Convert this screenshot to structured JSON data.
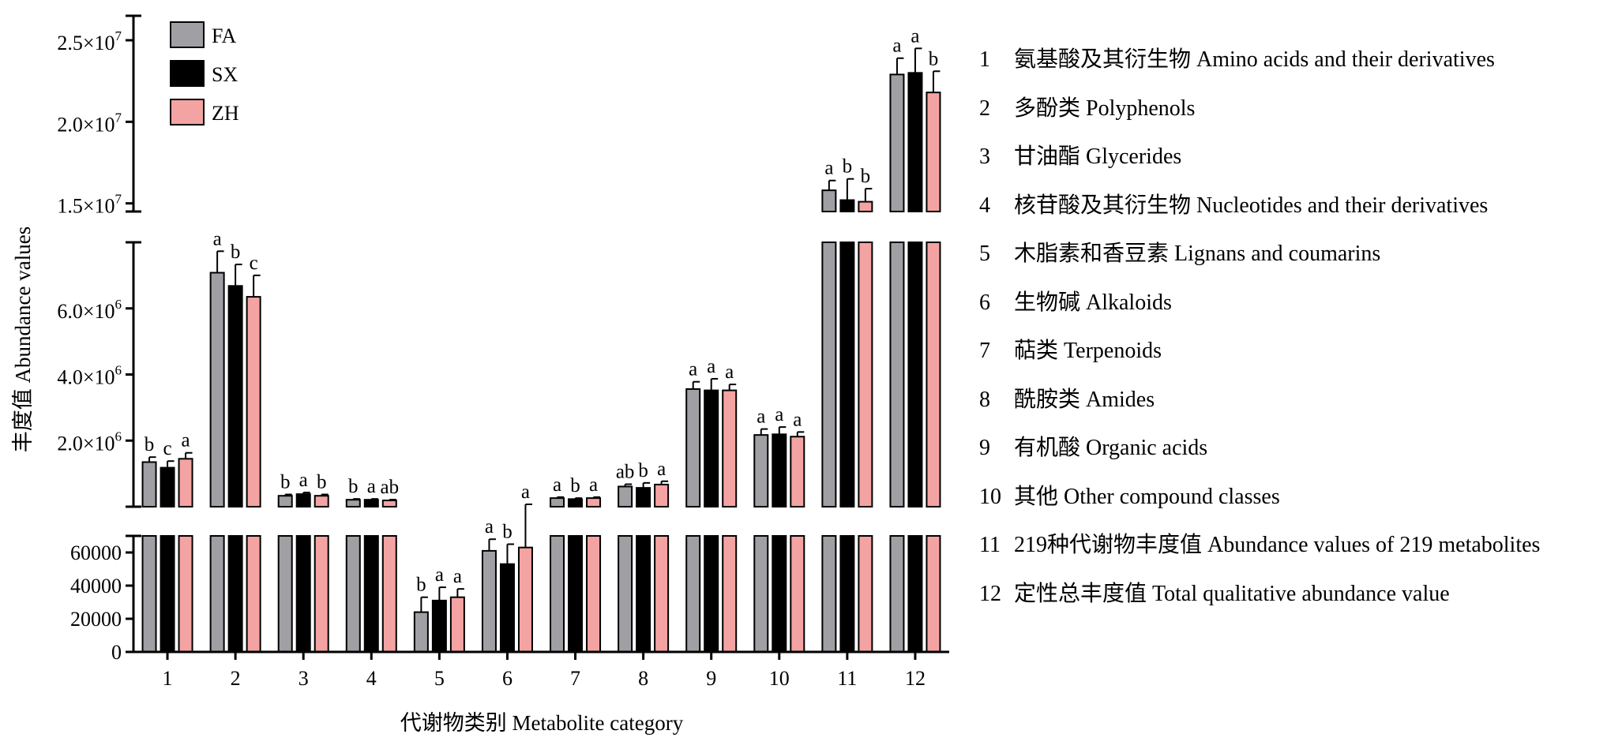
{
  "chart_data": {
    "type": "bar",
    "xlabel": "代谢物类别 Metabolite category",
    "ylabel": "丰度值 Abundance values",
    "categories": [
      "1",
      "2",
      "3",
      "4",
      "5",
      "6",
      "7",
      "8",
      "9",
      "10",
      "11",
      "12"
    ],
    "axis_segments": {
      "bottom": {
        "ylim": [
          0,
          70000
        ],
        "ticks": [
          0,
          20000,
          40000,
          60000
        ],
        "tick_labels": [
          "0",
          "20000",
          "40000",
          "60000"
        ]
      },
      "middle": {
        "ylim": [
          0,
          8000000
        ],
        "ticks": [
          2000000,
          4000000,
          6000000
        ],
        "tick_labels": [
          [
            "2.0×10",
            "6"
          ],
          [
            "4.0×10",
            "6"
          ],
          [
            "6.0×10",
            "6"
          ]
        ]
      },
      "top": {
        "ylim": [
          14500000,
          26500000
        ],
        "ticks": [
          15000000,
          20000000,
          25000000
        ],
        "tick_labels": [
          [
            "1.5×10",
            "7"
          ],
          [
            "2.0×10",
            "7"
          ],
          [
            "2.5×10",
            "7"
          ]
        ]
      }
    },
    "series": [
      {
        "name": "FA",
        "color": "#a0a0a4",
        "values": [
          1350000,
          7080000,
          330000,
          210000,
          24000,
          61000,
          260000,
          610000,
          3560000,
          2170000,
          15800000,
          22900000
        ],
        "errors": [
          150000,
          650000,
          40000,
          25000,
          9000,
          7000,
          30000,
          70000,
          220000,
          180000,
          600000,
          1000000
        ],
        "sig": [
          "b",
          "a",
          "b",
          "b",
          "b",
          "a",
          "a",
          "ab",
          "a",
          "a",
          "a",
          "a"
        ]
      },
      {
        "name": "SX",
        "color": "#000000",
        "values": [
          1180000,
          6680000,
          380000,
          210000,
          31000,
          53000,
          230000,
          570000,
          3520000,
          2190000,
          15200000,
          23000000
        ],
        "errors": [
          200000,
          650000,
          50000,
          25000,
          8000,
          12000,
          30000,
          150000,
          350000,
          220000,
          1300000,
          1500000
        ],
        "sig": [
          "c",
          "b",
          "a",
          "a",
          "a",
          "b",
          "b",
          "b",
          "a",
          "a",
          "b",
          "a"
        ]
      },
      {
        "name": "ZH",
        "color": "#f4a3a3",
        "values": [
          1450000,
          6350000,
          330000,
          190000,
          33000,
          63000,
          260000,
          670000,
          3520000,
          2120000,
          15100000,
          21800000
        ],
        "errors": [
          180000,
          650000,
          40000,
          25000,
          5000,
          9000,
          30000,
          100000,
          180000,
          140000,
          800000,
          1300000
        ],
        "sig": [
          "a",
          "c",
          "b",
          "ab",
          "a",
          "a",
          "a",
          "a",
          "a",
          "a",
          "b",
          "b"
        ]
      }
    ],
    "legend": {
      "placement": "top-left",
      "entries": [
        "FA",
        "SX",
        "ZH"
      ]
    }
  },
  "category_legend": [
    {
      "num": "1",
      "label": "氨基酸及其衍生物 Amino acids and their derivatives"
    },
    {
      "num": "2",
      "label": "多酚类 Polyphenols"
    },
    {
      "num": "3",
      "label": "甘油酯 Glycerides"
    },
    {
      "num": "4",
      "label": "核苷酸及其衍生物 Nucleotides and their derivatives"
    },
    {
      "num": "5",
      "label": "木脂素和香豆素 Lignans and coumarins"
    },
    {
      "num": "6",
      "label": "生物碱 Alkaloids"
    },
    {
      "num": "7",
      "label": "萜类 Terpenoids"
    },
    {
      "num": "8",
      "label": "酰胺类 Amides"
    },
    {
      "num": "9",
      "label": "有机酸 Organic acids"
    },
    {
      "num": "10",
      "label": "其他 Other compound classes"
    },
    {
      "num": "11",
      "label": "219种代谢物丰度值 Abundance values of 219 metabolites"
    },
    {
      "num": "12",
      "label": "定性总丰度值 Total qualitative abundance value"
    }
  ]
}
